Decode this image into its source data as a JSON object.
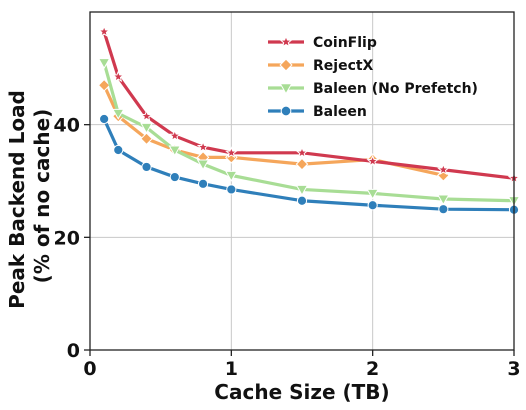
{
  "chart_data": {
    "type": "line",
    "title": "",
    "xlabel": "Cache Size (TB)",
    "ylabel_lines": [
      "Peak Backend Load",
      "(% of no cache)"
    ],
    "xlim": [
      0,
      3
    ],
    "ylim": [
      0,
      60
    ],
    "xticks": [
      0,
      1,
      2,
      3
    ],
    "yticks": [
      0,
      20,
      40
    ],
    "grid": true,
    "legend_position": "top-right",
    "series": [
      {
        "name": "CoinFlip",
        "color": "#d0394f",
        "marker": "star",
        "x": [
          0.1,
          0.2,
          0.4,
          0.6,
          0.8,
          1.0,
          1.5,
          2.0,
          2.5,
          3.0
        ],
        "y": [
          56.5,
          48.5,
          41.5,
          38.0,
          36.0,
          35.0,
          35.0,
          33.5,
          32.0,
          30.5
        ]
      },
      {
        "name": "RejectX",
        "color": "#f5a65b",
        "marker": "diamond",
        "x": [
          0.1,
          0.2,
          0.4,
          0.6,
          0.8,
          1.0,
          1.5,
          2.0,
          2.5
        ],
        "y": [
          47.0,
          41.5,
          37.5,
          35.5,
          34.2,
          34.2,
          33.0,
          33.8,
          31.0
        ]
      },
      {
        "name": "Baleen (No Prefetch)",
        "color": "#a8dd95",
        "marker": "triangle-down",
        "x": [
          0.1,
          0.2,
          0.4,
          0.6,
          0.8,
          1.0,
          1.5,
          2.0,
          2.5,
          3.0
        ],
        "y": [
          51.0,
          42.0,
          39.5,
          35.5,
          33.0,
          31.0,
          28.5,
          27.8,
          26.8,
          26.5
        ]
      },
      {
        "name": "Baleen",
        "color": "#2f7fba",
        "marker": "circle",
        "x": [
          0.1,
          0.2,
          0.4,
          0.6,
          0.8,
          1.0,
          1.5,
          2.0,
          2.5,
          3.0
        ],
        "y": [
          41.0,
          35.5,
          32.5,
          30.7,
          29.5,
          28.5,
          26.5,
          25.7,
          25.0,
          24.9
        ]
      }
    ]
  }
}
